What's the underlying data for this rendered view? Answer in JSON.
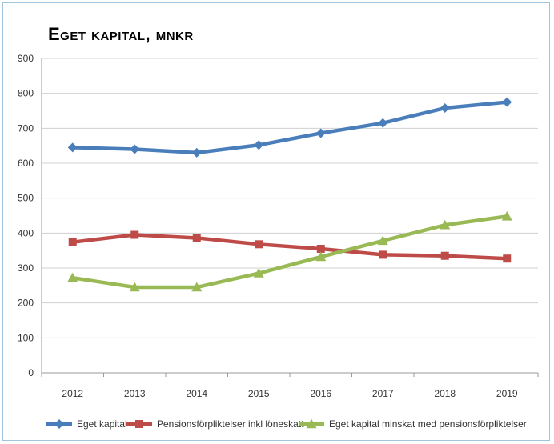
{
  "chart_data": {
    "type": "line",
    "title": "Eget kapital, mnkr",
    "x": [
      "2012",
      "2013",
      "2014",
      "2015",
      "2016",
      "2017",
      "2018",
      "2019"
    ],
    "ylim": [
      0,
      900
    ],
    "yticks": [
      0,
      100,
      200,
      300,
      400,
      500,
      600,
      700,
      800,
      900
    ],
    "grid": true,
    "legend_position": "bottom",
    "series": [
      {
        "name": "Eget kapital",
        "color": "#4a7ebb",
        "marker": "diamond",
        "values": [
          645,
          640,
          630,
          652,
          686,
          715,
          758,
          775
        ]
      },
      {
        "name": "Pensionsförpliktelser inkl löneskatt",
        "color": "#be4b48",
        "marker": "square",
        "values": [
          374,
          395,
          386,
          368,
          355,
          338,
          335,
          327
        ]
      },
      {
        "name": "Eget kapital minskat med pensionsförpliktelser",
        "color": "#98b954",
        "marker": "triangle",
        "values": [
          272,
          245,
          245,
          285,
          332,
          378,
          423,
          448
        ]
      }
    ]
  }
}
